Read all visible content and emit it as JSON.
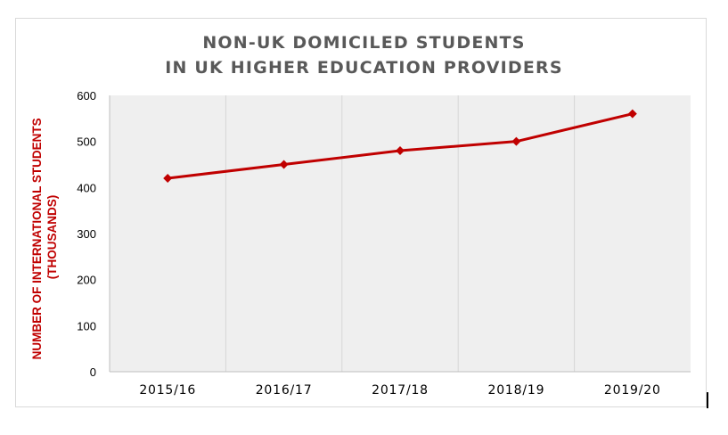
{
  "chart_data": {
    "type": "line",
    "title_lines": [
      "NON-UK DOMICILED STUDENTS",
      "IN UK HIGHER EDUCATION PROVIDERS"
    ],
    "ylabel_lines": [
      "NUMBER OF INTERNATIONAL STUDENTS",
      "(THOUSANDS)"
    ],
    "xlabel": "",
    "categories": [
      "2015/16",
      "2016/17",
      "2017/18",
      "2018/19",
      "2019/20"
    ],
    "series": [
      {
        "values": [
          420,
          450,
          480,
          500,
          560
        ],
        "color": "#c00000",
        "marker": "diamond"
      }
    ],
    "ylim": [
      0,
      600
    ],
    "yticks": [
      0,
      100,
      200,
      300,
      400,
      500,
      600
    ],
    "grid": "vertical",
    "plot_background": "#efefef",
    "legend": "none"
  }
}
